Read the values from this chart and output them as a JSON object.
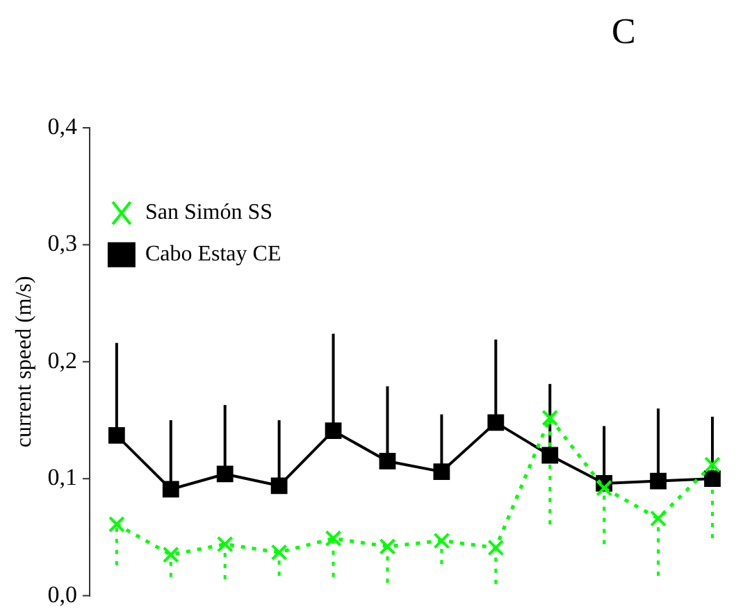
{
  "chart_data": {
    "type": "line",
    "title": "C",
    "ylabel": "current speed (m/s)",
    "categories": [
      null,
      null,
      null,
      null,
      null,
      null,
      null,
      null,
      null,
      null,
      null,
      null
    ],
    "series": [
      {
        "name": "Cabo Estay CE",
        "color": "#000000",
        "marker": "square",
        "line_style": "solid",
        "values": [
          0.137,
          0.091,
          0.104,
          0.094,
          0.141,
          0.115,
          0.106,
          0.148,
          0.12,
          0.096,
          0.098,
          0.1
        ],
        "errors": [
          [
            0.137,
            0.216
          ],
          [
            0.091,
            0.15
          ],
          [
            0.104,
            0.163
          ],
          [
            0.094,
            0.15
          ],
          [
            0.141,
            0.224
          ],
          [
            0.115,
            0.179
          ],
          [
            0.106,
            0.155
          ],
          [
            0.148,
            0.219
          ],
          [
            0.12,
            0.181
          ],
          [
            0.096,
            0.145
          ],
          [
            0.098,
            0.16
          ],
          [
            0.1,
            0.153
          ]
        ]
      },
      {
        "name": "San Simón SS",
        "color": "#00ff00",
        "marker": "cross",
        "line_style": "dotted",
        "values": [
          0.061,
          0.035,
          0.044,
          0.037,
          0.049,
          0.042,
          0.047,
          0.041,
          0.152,
          0.092,
          0.066,
          0.112
        ],
        "errors": [
          [
            0.026,
            0.061
          ],
          [
            0.016,
            0.035
          ],
          [
            0.014,
            0.044
          ],
          [
            0.017,
            0.037
          ],
          [
            0.016,
            0.049
          ],
          [
            0.011,
            0.042
          ],
          [
            0.027,
            0.047
          ],
          [
            0.01,
            0.041
          ],
          [
            0.061,
            0.152
          ],
          [
            0.044,
            0.092
          ],
          [
            0.017,
            0.066
          ],
          [
            0.049,
            0.112
          ]
        ]
      }
    ],
    "ylim": [
      0,
      0.4
    ],
    "yticks": [
      {
        "value": 0,
        "label": "0,0"
      },
      {
        "value": 0.1,
        "label": "0,1"
      },
      {
        "value": 0.2,
        "label": "0,2"
      },
      {
        "value": 0.3,
        "label": "0,3"
      },
      {
        "value": 0.4,
        "label": "0,4"
      }
    ],
    "grid": false,
    "legend": "top",
    "tick_labels": "y"
  }
}
